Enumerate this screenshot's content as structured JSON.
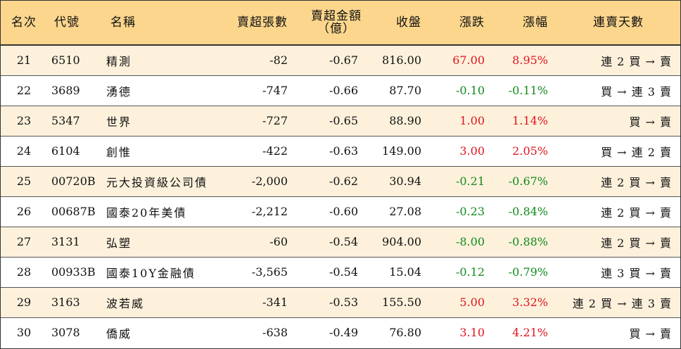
{
  "columns": {
    "rank": "名次",
    "code": "代號",
    "name": "名稱",
    "net_sell_lots": "賣超張數",
    "net_sell_amount": "賣超金額",
    "net_sell_amount_unit": "（億）",
    "close": "收盤",
    "change": "漲跌",
    "pct_change": "漲幅",
    "streak": "連賣天數"
  },
  "colors": {
    "header_bg": "#fcd68c",
    "row_alt_bg": "#fdf1dc",
    "up": "#e0141e",
    "down": "#118a1c"
  },
  "rows": [
    {
      "rank": "21",
      "code": "6510",
      "name": "精測",
      "lots": "-82",
      "amount": "-0.67",
      "close": "816.00",
      "change": "67.00",
      "pct": "8.95%",
      "dir": "up",
      "streak": "連 2 買 → 賣"
    },
    {
      "rank": "22",
      "code": "3689",
      "name": "湧德",
      "lots": "-747",
      "amount": "-0.66",
      "close": "87.70",
      "change": "-0.10",
      "pct": "-0.11%",
      "dir": "down",
      "streak": "買 → 連 3 賣"
    },
    {
      "rank": "23",
      "code": "5347",
      "name": "世界",
      "lots": "-727",
      "amount": "-0.65",
      "close": "88.90",
      "change": "1.00",
      "pct": "1.14%",
      "dir": "up",
      "streak": "買 → 賣"
    },
    {
      "rank": "24",
      "code": "6104",
      "name": "創惟",
      "lots": "-422",
      "amount": "-0.63",
      "close": "149.00",
      "change": "3.00",
      "pct": "2.05%",
      "dir": "up",
      "streak": "買 → 連 2 賣"
    },
    {
      "rank": "25",
      "code": "00720B",
      "name": "元大投資級公司債",
      "lots": "-2,000",
      "amount": "-0.62",
      "close": "30.94",
      "change": "-0.21",
      "pct": "-0.67%",
      "dir": "down",
      "streak": "連 2 買 → 賣"
    },
    {
      "rank": "26",
      "code": "00687B",
      "name": "國泰20年美債",
      "lots": "-2,212",
      "amount": "-0.60",
      "close": "27.08",
      "change": "-0.23",
      "pct": "-0.84%",
      "dir": "down",
      "streak": "連 2 買 → 賣"
    },
    {
      "rank": "27",
      "code": "3131",
      "name": "弘塑",
      "lots": "-60",
      "amount": "-0.54",
      "close": "904.00",
      "change": "-8.00",
      "pct": "-0.88%",
      "dir": "down",
      "streak": "連 2 買 → 賣"
    },
    {
      "rank": "28",
      "code": "00933B",
      "name": "國泰10Y金融債",
      "lots": "-3,565",
      "amount": "-0.54",
      "close": "15.04",
      "change": "-0.12",
      "pct": "-0.79%",
      "dir": "down",
      "streak": "連 3 買 → 賣"
    },
    {
      "rank": "29",
      "code": "3163",
      "name": "波若威",
      "lots": "-341",
      "amount": "-0.53",
      "close": "155.50",
      "change": "5.00",
      "pct": "3.32%",
      "dir": "up",
      "streak": "連 2 買 → 連 3 賣"
    },
    {
      "rank": "30",
      "code": "3078",
      "name": "僑威",
      "lots": "-638",
      "amount": "-0.49",
      "close": "76.80",
      "change": "3.10",
      "pct": "4.21%",
      "dir": "up",
      "streak": "買 → 賣"
    }
  ]
}
